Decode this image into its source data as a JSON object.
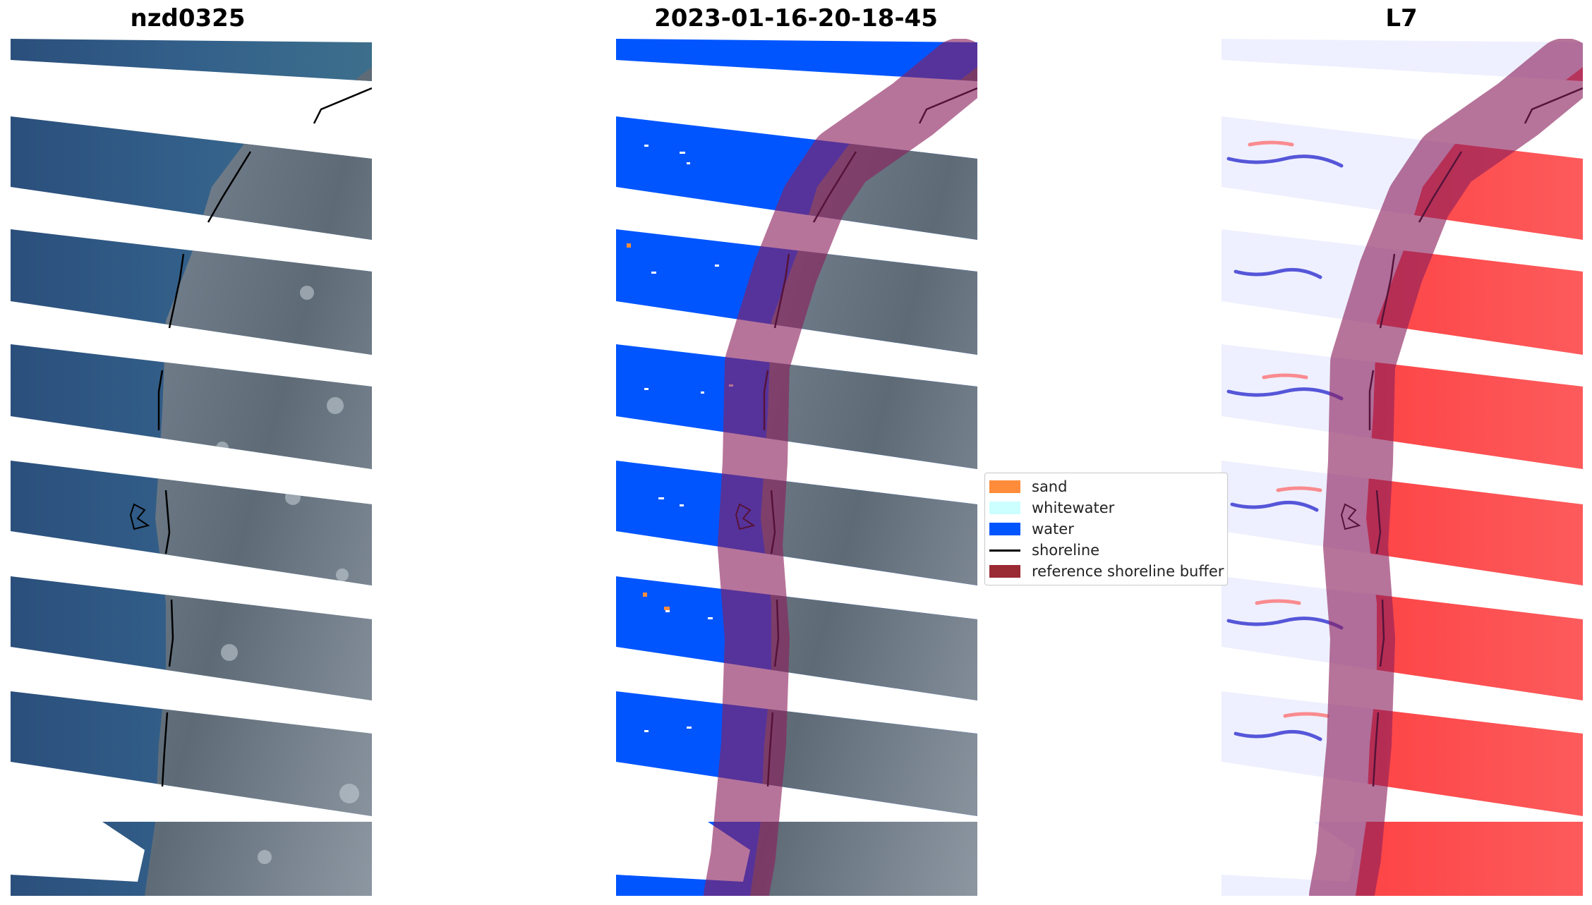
{
  "titles": {
    "left": "nzd0325",
    "middle": "2023-01-16-20-18-45",
    "right": "L7"
  },
  "legend": {
    "items": [
      {
        "label": "sand",
        "color": "#ff8c3a"
      },
      {
        "label": "whitewater",
        "color": "#ccffff"
      },
      {
        "label": "water",
        "color": "#0055ff"
      },
      {
        "label": "shoreline",
        "color": "#000000",
        "kind": "line"
      },
      {
        "label": "reference shoreline buffer",
        "color": "#9a2a33"
      }
    ]
  },
  "colors": {
    "sea": "#2f5a86",
    "land": "#6f7c8a",
    "water_class": "#0055ff",
    "buffer": "#8a1f5c",
    "index_high": "#ff2020",
    "index_low": "#2020d0"
  }
}
